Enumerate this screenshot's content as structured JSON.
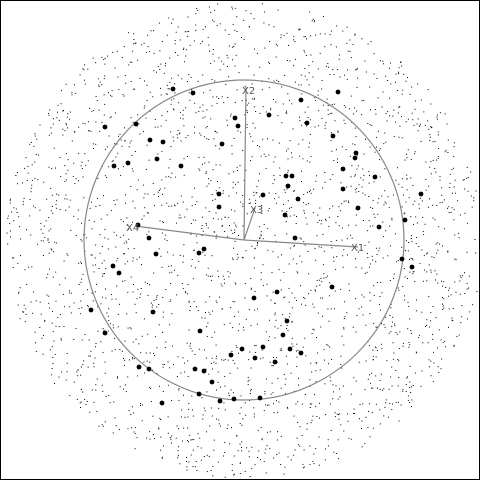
{
  "diagram": {
    "type": "star field with unit circle and labeled vectors",
    "colors": {
      "background": "#ffffff",
      "dots": "#000000",
      "lines": "#888888",
      "labels": "#555555"
    },
    "labels": {
      "x1": "X1",
      "x2": "X2",
      "x3": "X3",
      "x4": "X4"
    }
  }
}
